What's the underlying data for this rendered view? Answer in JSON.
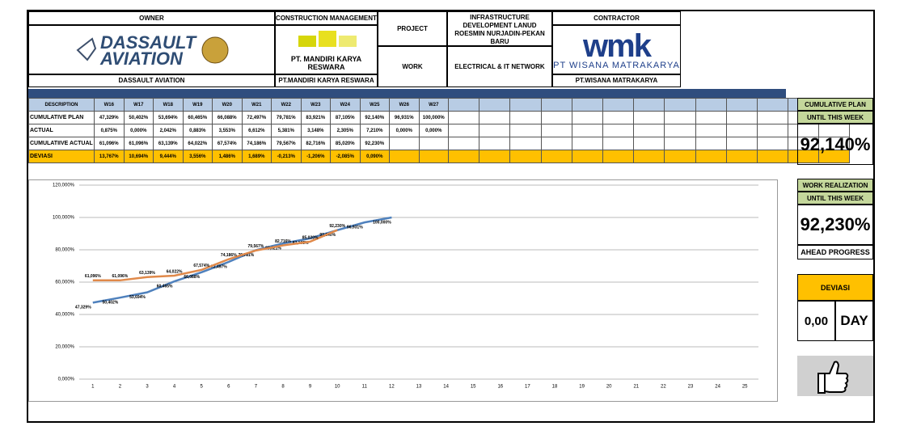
{
  "header": {
    "owner": "OWNER",
    "construction_management": "CONSTRUCTION MANAGEMENT",
    "project_label": "PROJECT",
    "project": "INFRASTRUCTURE DEVELOPMENT LANUD ROESMIN NURJADIN-PEKAN BARU",
    "contractor": "CONTRACTOR",
    "work_label": "WORK",
    "work": "ELECTRICAL & IT NETWORK",
    "owner_logo": [
      "DASSAULT",
      "AVIATION"
    ],
    "cm_logo_caption": "PT. MANDIRI KARYA RESWARA",
    "contractor_logo": "wmk",
    "contractor_logo_caption": "PT WISANA MATRAKARYA",
    "owner_name": "DASSAULT AVIATION",
    "cm_name": "PT.MANDIRI KARYA RESWARA",
    "contractor_name": "PT.WISANA MATRAKARYA"
  },
  "table": {
    "header": [
      "DESCRIPTION",
      "W16",
      "W17",
      "W18",
      "W19",
      "W20",
      "W21",
      "W22",
      "W23",
      "W24",
      "W25",
      "W26",
      "W27"
    ],
    "rows": [
      [
        "CUMULATIVE PLAN",
        "47,329%",
        "50,402%",
        "53,694%",
        "60,465%",
        "66,088%",
        "72,497%",
        "79,781%",
        "83,921%",
        "87,105%",
        "92,140%",
        "96,931%",
        "100,000%"
      ],
      [
        "ACTUAL",
        "0,875%",
        "0,000%",
        "2,042%",
        "0,883%",
        "3,553%",
        "6,612%",
        "5,381%",
        "3,148%",
        "2,305%",
        "7,210%",
        "0,000%",
        "0,000%"
      ],
      [
        "CUMULATIIVE ACTUAL",
        "61,096%",
        "61,096%",
        "63,139%",
        "64,022%",
        "67,574%",
        "74,186%",
        "79,567%",
        "82,716%",
        "85,020%",
        "92,230%"
      ],
      [
        "DEVIASI",
        "13,767%",
        "10,694%",
        "9,444%",
        "3,556%",
        "1,486%",
        "1,689%",
        "-0,213%",
        "-1,206%",
        "-2,085%",
        "0,090%"
      ]
    ]
  },
  "summary": {
    "plan_title": "CUMULATIVE PLAN",
    "plan_sub": "UNTIL THIS WEEK",
    "plan_value": "92,140%",
    "real_title": "WORK REALIZATION",
    "real_sub": "UNTIL THIS WEEK",
    "real_value": "92,230%",
    "status": "AHEAD PROGRESS",
    "dev_title": "DEVIASI",
    "dev_value": "0,00",
    "dev_unit": "DAY"
  },
  "chart_data": {
    "type": "line",
    "x": [
      1,
      2,
      3,
      4,
      5,
      6,
      7,
      8,
      9,
      10,
      11,
      12
    ],
    "series": [
      {
        "name": "CUMULATIVE PLAN",
        "color": "#4f81bd",
        "values": [
          47.329,
          50.402,
          53.694,
          60.465,
          66.088,
          72.497,
          79.781,
          83.921,
          87.105,
          92.14,
          96.931,
          100.0
        ],
        "value_labels": [
          "47,329%",
          "50,402%",
          "53,694%",
          "60,465%",
          "66,088%",
          "72,497%",
          "79,781%",
          "83,921%",
          "87,105%",
          "92,140%",
          "96,931%",
          "100,000%"
        ]
      },
      {
        "name": "CUMULATIIVE ACTUAL",
        "color": "#e0894a",
        "values": [
          61.096,
          61.096,
          63.139,
          64.022,
          67.574,
          74.186,
          79.567,
          82.716,
          85.02,
          92.23,
          null,
          null
        ],
        "value_labels": [
          "61,096%",
          "61,096%",
          "63,139%",
          "64,022%",
          "67,574%",
          "74,186%",
          "79,567%",
          "82,716%",
          "85,020%",
          "92,230%",
          null,
          null
        ]
      }
    ],
    "xlim": [
      0.5,
      25.5
    ],
    "xticks": [
      1,
      2,
      3,
      4,
      5,
      6,
      7,
      8,
      9,
      10,
      11,
      12,
      13,
      14,
      15,
      16,
      17,
      18,
      19,
      20,
      21,
      22,
      23,
      24,
      25
    ],
    "ylim": [
      0,
      120
    ],
    "yticks": [
      {
        "value": 0,
        "label": "0,000%"
      },
      {
        "value": 20,
        "label": "20,000%"
      },
      {
        "value": 40,
        "label": "40,000%"
      },
      {
        "value": 60,
        "label": "60,000%"
      },
      {
        "value": 80,
        "label": "80,000%"
      },
      {
        "value": 100,
        "label": "100,000%"
      },
      {
        "value": 120,
        "label": "120,000%"
      }
    ],
    "grid": true
  }
}
